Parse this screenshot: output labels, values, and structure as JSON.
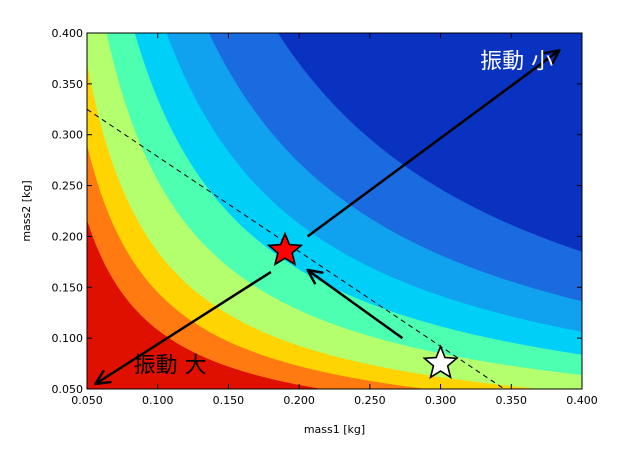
{
  "chart_data": {
    "type": "contour",
    "xlabel": "mass1 [kg]",
    "ylabel": "mass2 [kg]",
    "xlim": [
      0.05,
      0.4
    ],
    "ylim": [
      0.05,
      0.4
    ],
    "x_ticks": [
      "0.050",
      "0.100",
      "0.150",
      "0.200",
      "0.250",
      "0.300",
      "0.350",
      "0.400"
    ],
    "y_ticks": [
      "0.050",
      "0.100",
      "0.150",
      "0.200",
      "0.250",
      "0.300",
      "0.350",
      "0.400"
    ],
    "grid": false,
    "levels": [
      {
        "color": "#e01000",
        "k": 0.0
      },
      {
        "color": "#ff7a10",
        "k": 0.0108
      },
      {
        "color": "#ffd400",
        "k": 0.0145
      },
      {
        "color": "#b4ff6e",
        "k": 0.0185
      },
      {
        "color": "#4dffb0",
        "k": 0.0255
      },
      {
        "color": "#00d0f8",
        "k": 0.0335
      },
      {
        "color": "#10a2ee",
        "k": 0.0425
      },
      {
        "color": "#1a6ae0",
        "k": 0.0545
      },
      {
        "color": "#0a32c0",
        "k": 0.074
      }
    ],
    "dashed_line": {
      "from": [
        0.05,
        0.325
      ],
      "to": [
        0.345,
        0.05
      ]
    },
    "red_star": {
      "x": 0.19,
      "y": 0.186
    },
    "white_star": {
      "x": 0.3,
      "y": 0.075
    },
    "arrows": [
      {
        "from": [
          0.206,
          0.2
        ],
        "to": [
          0.384,
          0.383
        ]
      },
      {
        "from": [
          0.18,
          0.165
        ],
        "to": [
          0.056,
          0.055
        ]
      },
      {
        "from": [
          0.273,
          0.1
        ],
        "to": [
          0.206,
          0.167
        ]
      }
    ],
    "annotations": [
      {
        "text": "振動 小",
        "x": 0.328,
        "y": 0.365,
        "color": "#ffffff"
      },
      {
        "text": "振動 大",
        "x": 0.083,
        "y": 0.066,
        "color": "#000000"
      }
    ]
  }
}
